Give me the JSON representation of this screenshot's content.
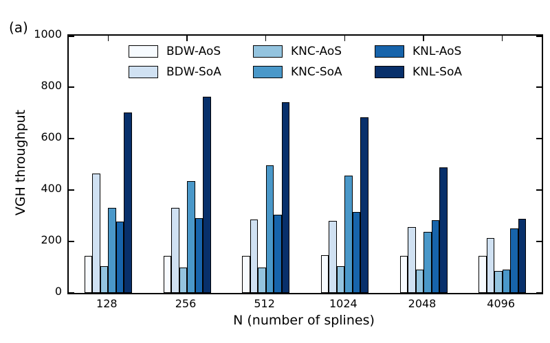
{
  "figure_label": "(a)",
  "chart_data": {
    "type": "bar",
    "title": "",
    "xlabel": "N (number of splines)",
    "ylabel": "VGH throughput",
    "categories": [
      "128",
      "256",
      "512",
      "1024",
      "2048",
      "4096"
    ],
    "series": [
      {
        "name": "BDW-AoS",
        "color": "#f7fbff",
        "values": [
          145,
          145,
          145,
          147,
          145,
          145
        ]
      },
      {
        "name": "BDW-SoA",
        "color": "#d0e1f2",
        "values": [
          465,
          330,
          285,
          280,
          255,
          213
        ]
      },
      {
        "name": "KNC-AoS",
        "color": "#94c4df",
        "values": [
          105,
          100,
          100,
          105,
          90,
          85
        ]
      },
      {
        "name": "KNC-SoA",
        "color": "#4a98c9",
        "values": [
          330,
          435,
          497,
          455,
          237,
          92
        ]
      },
      {
        "name": "KNL-AoS",
        "color": "#1764ab",
        "values": [
          277,
          290,
          303,
          315,
          283,
          250
        ]
      },
      {
        "name": "KNL-SoA",
        "color": "#08306b",
        "values": [
          702,
          764,
          742,
          684,
          489,
          288
        ]
      }
    ],
    "ylim": [
      0,
      1000
    ],
    "yticks": [
      0,
      200,
      400,
      600,
      800,
      1000
    ],
    "grid": false,
    "bar_edge_color": "#000000",
    "legend_position": "upper-left-inside",
    "legend_row_major_order": [
      0,
      2,
      4,
      1,
      3,
      5
    ]
  }
}
